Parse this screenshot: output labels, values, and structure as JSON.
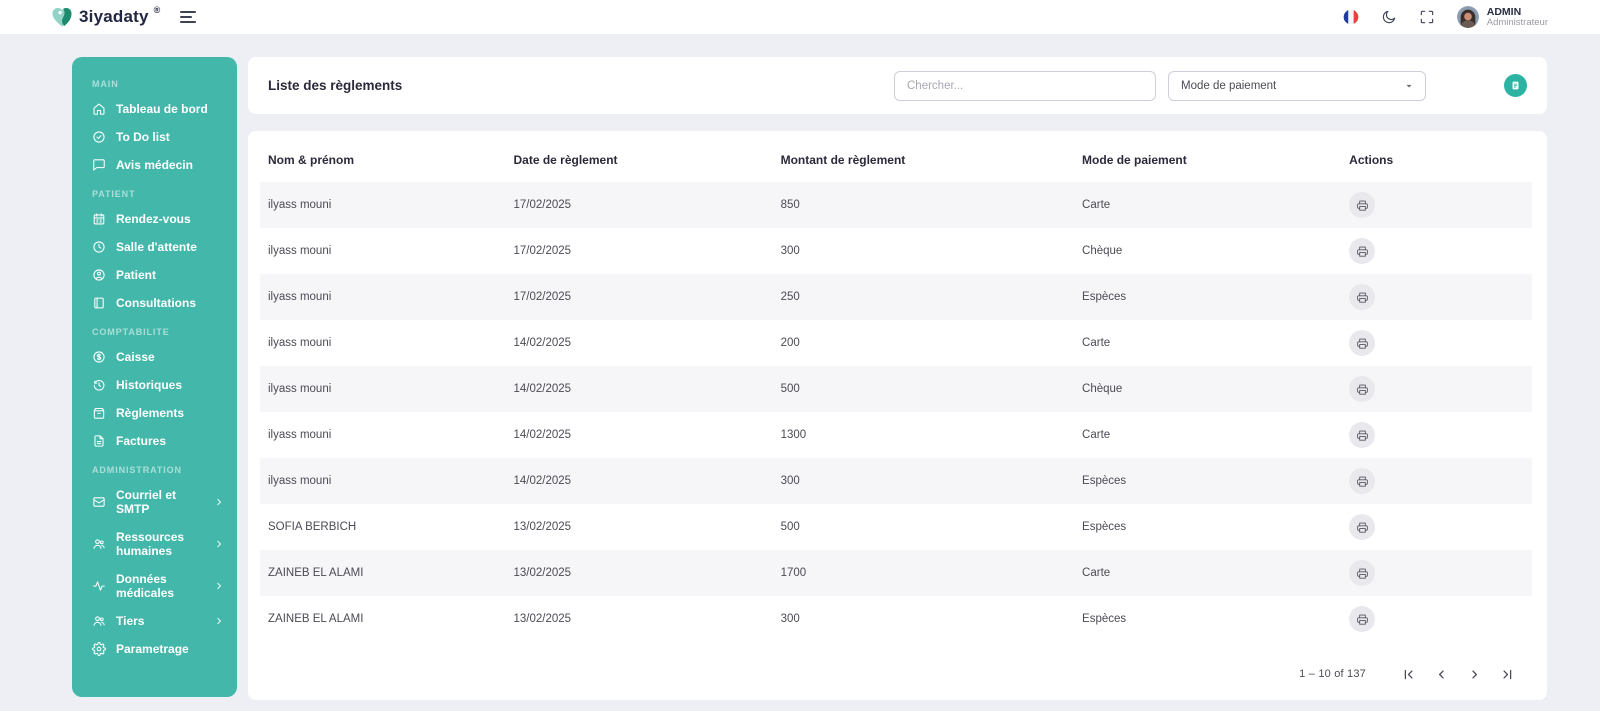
{
  "topbar": {
    "logo_text": "3iyadaty",
    "logo_reg": "®",
    "user_name": "ADMIN",
    "user_role": "Administrateur"
  },
  "sidebar": {
    "sections": [
      {
        "label": "MAIN",
        "items": [
          {
            "label": "Tableau de bord",
            "icon": "home",
            "chevron": false
          },
          {
            "label": "To Do list",
            "icon": "check-circle",
            "chevron": false
          },
          {
            "label": "Avis médecin",
            "icon": "chat",
            "chevron": false
          }
        ]
      },
      {
        "label": "PATIENT",
        "items": [
          {
            "label": "Rendez-vous",
            "icon": "calendar",
            "chevron": false
          },
          {
            "label": "Salle d'attente",
            "icon": "clock",
            "chevron": false
          },
          {
            "label": "Patient",
            "icon": "person-circle",
            "chevron": false
          },
          {
            "label": "Consultations",
            "icon": "book",
            "chevron": false
          }
        ]
      },
      {
        "label": "COMPTABILITE",
        "items": [
          {
            "label": "Caisse",
            "icon": "dollar-circle",
            "chevron": false
          },
          {
            "label": "Historiques",
            "icon": "history",
            "chevron": false
          },
          {
            "label": "Règlements",
            "icon": "archive",
            "chevron": false
          },
          {
            "label": "Factures",
            "icon": "file",
            "chevron": false
          }
        ]
      },
      {
        "label": "ADMINISTRATION",
        "items": [
          {
            "label": "Courriel et SMTP",
            "icon": "mail",
            "chevron": true
          },
          {
            "label": "Ressources humaines",
            "icon": "people",
            "chevron": true
          },
          {
            "label": "Données médicales",
            "icon": "activity",
            "chevron": true
          },
          {
            "label": "Tiers",
            "icon": "people",
            "chevron": true
          },
          {
            "label": "Parametrage",
            "icon": "gear",
            "chevron": false
          }
        ]
      }
    ]
  },
  "toolbar": {
    "title": "Liste des règlements",
    "search_placeholder": "Chercher...",
    "filter_value": "Mode de paiement"
  },
  "table": {
    "columns": [
      "Nom & prénom",
      "Date de règlement",
      "Montant de règlement",
      "Mode de paiement",
      "Actions"
    ],
    "rows": [
      {
        "name": "ilyass mouni",
        "date": "17/02/2025",
        "amount": "850",
        "mode": "Carte"
      },
      {
        "name": "ilyass mouni",
        "date": "17/02/2025",
        "amount": "300",
        "mode": "Chèque"
      },
      {
        "name": "ilyass mouni",
        "date": "17/02/2025",
        "amount": "250",
        "mode": "Espèces"
      },
      {
        "name": "ilyass mouni",
        "date": "14/02/2025",
        "amount": "200",
        "mode": "Carte"
      },
      {
        "name": "ilyass mouni",
        "date": "14/02/2025",
        "amount": "500",
        "mode": "Chèque"
      },
      {
        "name": "ilyass mouni",
        "date": "14/02/2025",
        "amount": "1300",
        "mode": "Carte"
      },
      {
        "name": "ilyass mouni",
        "date": "14/02/2025",
        "amount": "300",
        "mode": "Espèces"
      },
      {
        "name": "SOFIA BERBICH",
        "date": "13/02/2025",
        "amount": "500",
        "mode": "Espèces"
      },
      {
        "name": "ZAINEB EL ALAMI",
        "date": "13/02/2025",
        "amount": "1700",
        "mode": "Carte"
      },
      {
        "name": "ZAINEB EL ALAMI",
        "date": "13/02/2025",
        "amount": "300",
        "mode": "Espèces"
      }
    ]
  },
  "pagination": {
    "range_label": "1 – 10 of 137"
  },
  "colors": {
    "sidebar_teal": "#43b7aa",
    "accent_green": "#2db3a4",
    "page_background": "#edeff4",
    "zebra_row": "#f6f6f8"
  }
}
